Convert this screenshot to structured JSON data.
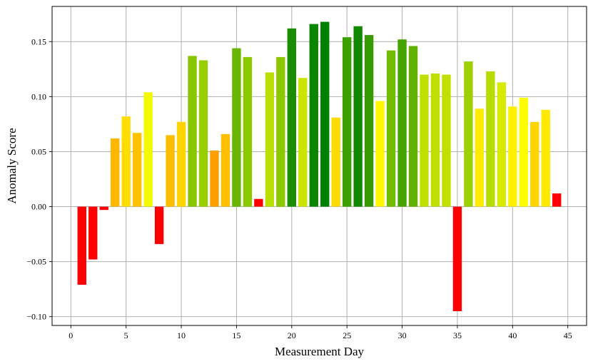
{
  "chart_data": {
    "type": "bar",
    "title": "",
    "xlabel": "Measurement Day",
    "ylabel": "Anomaly Score",
    "xlim": [
      -1.7,
      46.7
    ],
    "ylim": [
      -0.108,
      0.182
    ],
    "xticks": [
      0,
      5,
      10,
      15,
      20,
      25,
      30,
      35,
      40,
      45
    ],
    "yticks": [
      -0.1,
      -0.05,
      0.0,
      0.05,
      0.1,
      0.15
    ],
    "ytick_labels": [
      "−0.10",
      "−0.05",
      "0.00",
      "0.05",
      "0.10",
      "0.15"
    ],
    "grid": true,
    "bar_width": 0.8,
    "color_scale": "red (low) to yellow to green (high)",
    "x": [
      1,
      2,
      3,
      4,
      5,
      6,
      7,
      8,
      9,
      10,
      11,
      12,
      13,
      14,
      15,
      16,
      17,
      18,
      19,
      20,
      21,
      22,
      23,
      24,
      25,
      26,
      27,
      28,
      29,
      30,
      31,
      32,
      33,
      34,
      35,
      36,
      37,
      38,
      39,
      40,
      41,
      42,
      43,
      44
    ],
    "values": [
      -0.071,
      -0.048,
      -0.003,
      0.062,
      0.082,
      0.067,
      0.104,
      -0.034,
      0.065,
      0.077,
      0.137,
      0.133,
      0.051,
      0.066,
      0.144,
      0.136,
      0.007,
      0.122,
      0.136,
      0.162,
      0.117,
      0.166,
      0.168,
      0.081,
      0.154,
      0.164,
      0.156,
      0.096,
      0.142,
      0.152,
      0.146,
      0.12,
      0.121,
      0.12,
      -0.095,
      0.132,
      0.089,
      0.123,
      0.113,
      0.091,
      0.099,
      0.077,
      0.088,
      0.012
    ]
  }
}
